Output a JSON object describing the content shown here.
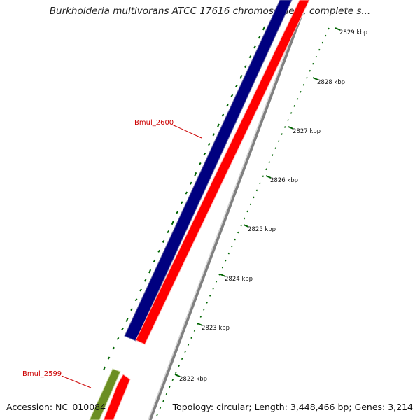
{
  "title": "Burkholderia multivorans ATCC 17616 chromosome 1, complete s...",
  "footer": {
    "accession": "Accession: NC_010084",
    "info": "Topology: circular; Length: 3,448,466 bp; Genes: 3,214"
  },
  "colors": {
    "forward_gene": "#000080",
    "reverse_gene": "#ff0000",
    "other_gene": "#6b8e23",
    "backbone": "#808080",
    "ticks": "#006400",
    "gene_label": "#cc0000"
  },
  "genes": [
    {
      "name": "Bmul_2600",
      "strand": "forward-and-reverse"
    },
    {
      "name": "Bmul_2599",
      "strand": "forward"
    }
  ],
  "ticks": [
    {
      "label": "2829 kbp"
    },
    {
      "label": "2828 kbp"
    },
    {
      "label": "2827 kbp"
    },
    {
      "label": "2826 kbp"
    },
    {
      "label": "2825 kbp"
    },
    {
      "label": "2824 kbp"
    },
    {
      "label": "2823 kbp"
    },
    {
      "label": "2822 kbp"
    }
  ]
}
